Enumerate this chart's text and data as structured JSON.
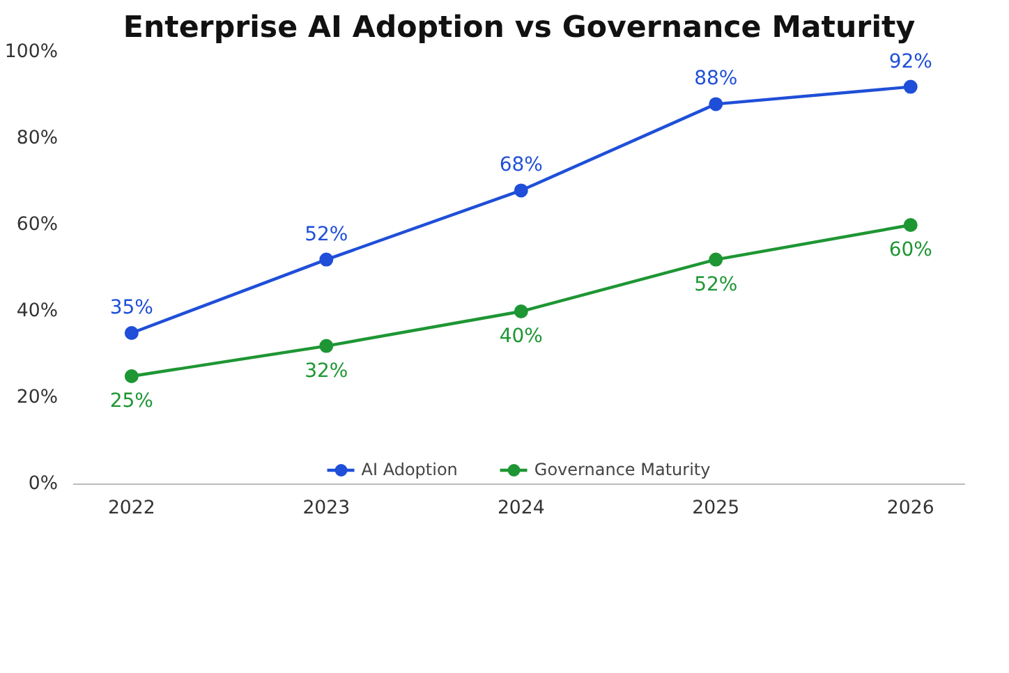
{
  "chart_data": {
    "type": "line",
    "title": "Enterprise AI Adoption vs Governance Maturity",
    "x": [
      2022,
      2023,
      2024,
      2025,
      2026
    ],
    "series": [
      {
        "name": "AI Adoption",
        "color": "#1f4fd8",
        "values": [
          35,
          52,
          68,
          88,
          92
        ],
        "value_labels": [
          "35%",
          "52%",
          "68%",
          "88%",
          "92%"
        ]
      },
      {
        "name": "Governance Maturity",
        "color": "#1e9634",
        "values": [
          25,
          32,
          40,
          52,
          60
        ],
        "value_labels": [
          "25%",
          "32%",
          "40%",
          "52%",
          "60%"
        ]
      }
    ],
    "xlim": [
      2021.7,
      2026.28
    ],
    "xticks": [
      2022,
      2023,
      2024,
      2025,
      2026
    ],
    "ylim": [
      0,
      100
    ],
    "yticks": [
      {
        "value": 0,
        "label": "0%"
      },
      {
        "value": 20,
        "label": "20%"
      },
      {
        "value": 40,
        "label": "40%"
      },
      {
        "value": 60,
        "label": "60%"
      },
      {
        "value": 80,
        "label": "80%"
      },
      {
        "value": 100,
        "label": "100%"
      }
    ],
    "data_labels": true,
    "marker": "circle",
    "line_style": "solid",
    "grid": false,
    "legend": "bottom"
  }
}
